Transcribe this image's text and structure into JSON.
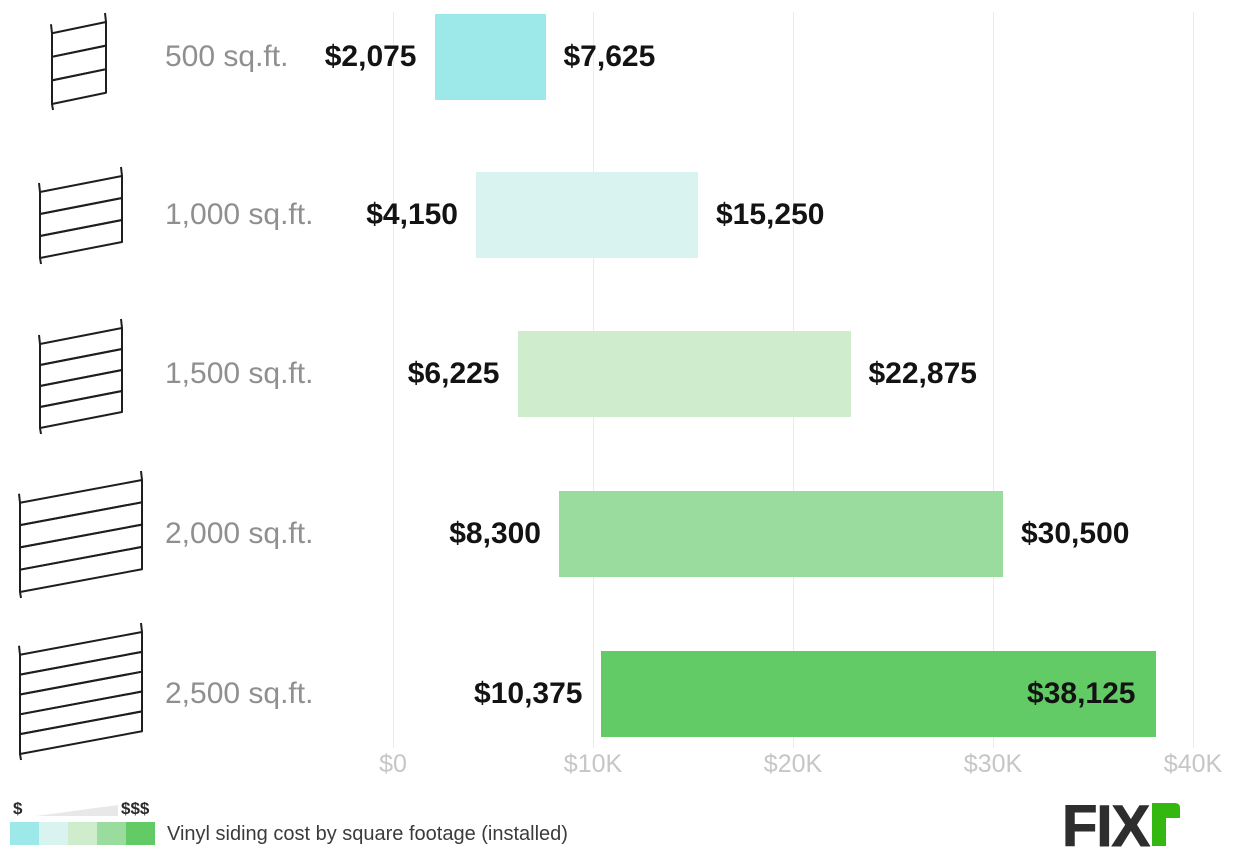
{
  "chart_data": {
    "type": "bar",
    "subtype": "horizontal-range-bars",
    "title": "Vinyl siding cost by square footage (installed)",
    "xlabel": "",
    "ylabel": "",
    "x_range": [
      0,
      40000
    ],
    "grid": true,
    "legend_position": "bottom-left",
    "axis_ticks": [
      {
        "value": 0,
        "label": "$0"
      },
      {
        "value": 10000,
        "label": "$10K"
      },
      {
        "value": 20000,
        "label": "$20K"
      },
      {
        "value": 30000,
        "label": "$30K"
      },
      {
        "value": 40000,
        "label": "$40K"
      }
    ],
    "series": [
      {
        "category": "500 sq.ft.",
        "min": 2075,
        "max": 7625,
        "min_label": "$2,075",
        "max_label": "$7,625",
        "color": "#9de8e9",
        "planks": 3,
        "max_label_inside": false
      },
      {
        "category": "1,000 sq.ft.",
        "min": 4150,
        "max": 15250,
        "min_label": "$4,150",
        "max_label": "$15,250",
        "color": "#d9f3f1",
        "planks": 3,
        "max_label_inside": false
      },
      {
        "category": "1,500 sq.ft.",
        "min": 6225,
        "max": 22875,
        "min_label": "$6,225",
        "max_label": "$22,875",
        "color": "#cfeccc",
        "planks": 4,
        "max_label_inside": false
      },
      {
        "category": "2,000 sq.ft.",
        "min": 8300,
        "max": 30500,
        "min_label": "$8,300",
        "max_label": "$30,500",
        "color": "#9adc9e",
        "planks": 4,
        "max_label_inside": false
      },
      {
        "category": "2,500 sq.ft.",
        "min": 10375,
        "max": 38125,
        "min_label": "$10,375",
        "max_label": "$38,125",
        "color": "#63cb66",
        "planks": 5,
        "max_label_inside": true
      }
    ]
  },
  "legend": {
    "low_label": "$",
    "high_label": "$$$",
    "swatch_colors": [
      "#9de8e9",
      "#d9f3f1",
      "#cfeccc",
      "#9adc9e",
      "#63cb66"
    ],
    "caption": "Vinyl siding cost by square footage (installed)"
  },
  "branding": {
    "logo_text": "FIX",
    "logo_suffix": "r",
    "logo_green": "#34b70e",
    "logo_dark": "#2e2e2e"
  }
}
